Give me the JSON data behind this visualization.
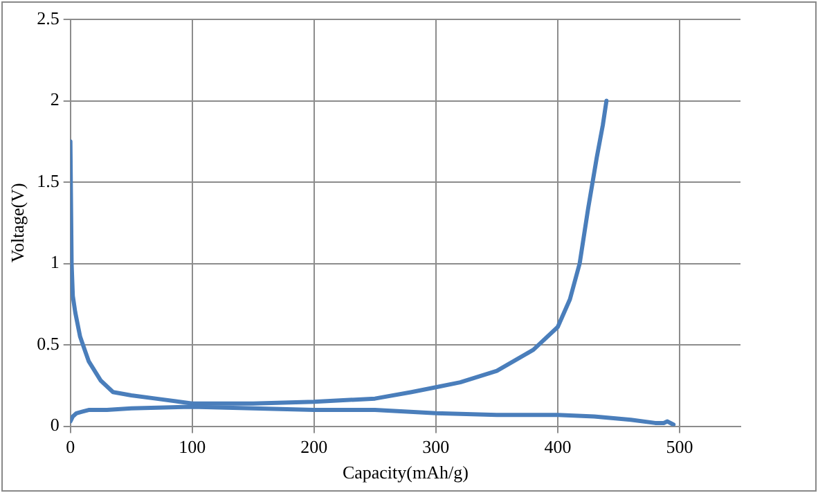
{
  "chart_data": {
    "type": "line",
    "xlabel": "Capacity(mAh/g)",
    "ylabel": "Voltage(V)",
    "xlim": [
      0,
      550
    ],
    "xticks": [
      0,
      100,
      200,
      300,
      400,
      500
    ],
    "ylim": [
      0,
      2.5
    ],
    "yticks": [
      0,
      0.5,
      1,
      1.5,
      2,
      2.5
    ],
    "grid": true,
    "legend": false,
    "marker": "none",
    "line_style": "solid",
    "series": [
      {
        "color": "#4a7ebb",
        "x": [
          0,
          2,
          5,
          10,
          15,
          30,
          50,
          100,
          150,
          200,
          250,
          300,
          350,
          400,
          430,
          460,
          480,
          487,
          490,
          495
        ],
        "values": [
          0.03,
          0.06,
          0.08,
          0.09,
          0.1,
          0.1,
          0.11,
          0.12,
          0.11,
          0.1,
          0.1,
          0.08,
          0.07,
          0.07,
          0.06,
          0.04,
          0.02,
          0.02,
          0.03,
          0.01
        ]
      },
      {
        "color": "#4a7ebb",
        "x": [
          0,
          1,
          2,
          4,
          8,
          15,
          25,
          35,
          50,
          70,
          100,
          150,
          200,
          250,
          280,
          300,
          320,
          350,
          380,
          400,
          410,
          418,
          425,
          432,
          437,
          440
        ],
        "values": [
          1.75,
          1.0,
          0.8,
          0.7,
          0.55,
          0.4,
          0.28,
          0.21,
          0.19,
          0.17,
          0.14,
          0.14,
          0.15,
          0.17,
          0.21,
          0.24,
          0.27,
          0.34,
          0.47,
          0.61,
          0.78,
          1.0,
          1.34,
          1.65,
          1.85,
          2.0
        ]
      }
    ]
  }
}
